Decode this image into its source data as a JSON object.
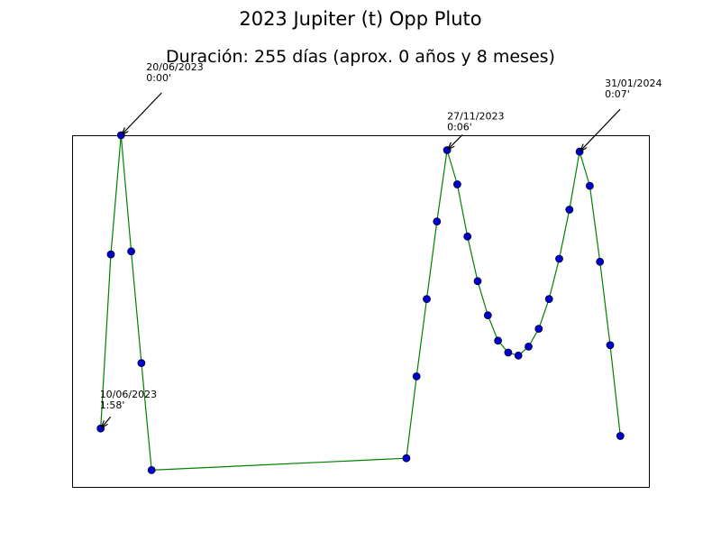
{
  "chart_data": {
    "type": "line",
    "title": "2023 Jupiter (t) Opp Pluto",
    "subtitle": "Duración: 255 días (aprox. 0 años y 8 meses)",
    "xlabel": "",
    "ylabel": "",
    "x_ticks_visible": false,
    "y_ticks_visible": false,
    "grid": false,
    "line_color": "#008000",
    "marker_color": "#0000cc",
    "marker_edge_color": "#000033",
    "series": [
      {
        "points": [
          {
            "x": "2023-06-10",
            "y": 1.97
          },
          {
            "x": "2023-06-15",
            "y": 0.8
          },
          {
            "x": "2023-06-20",
            "y": 0.0
          },
          {
            "x": "2023-06-25",
            "y": 0.78
          },
          {
            "x": "2023-06-30",
            "y": 1.53
          },
          {
            "x": "2023-07-05",
            "y": 2.25
          },
          {
            "x": "2023-11-07",
            "y": 2.17
          },
          {
            "x": "2023-11-12",
            "y": 1.62
          },
          {
            "x": "2023-11-17",
            "y": 1.1
          },
          {
            "x": "2023-11-22",
            "y": 0.58
          },
          {
            "x": "2023-11-27",
            "y": 0.1
          },
          {
            "x": "2023-12-02",
            "y": 0.33
          },
          {
            "x": "2023-12-07",
            "y": 0.68
          },
          {
            "x": "2023-12-12",
            "y": 0.98
          },
          {
            "x": "2023-12-17",
            "y": 1.21
          },
          {
            "x": "2023-12-22",
            "y": 1.38
          },
          {
            "x": "2023-12-27",
            "y": 1.46
          },
          {
            "x": "2024-01-01",
            "y": 1.48
          },
          {
            "x": "2024-01-06",
            "y": 1.42
          },
          {
            "x": "2024-01-11",
            "y": 1.3
          },
          {
            "x": "2024-01-16",
            "y": 1.1
          },
          {
            "x": "2024-01-21",
            "y": 0.83
          },
          {
            "x": "2024-01-26",
            "y": 0.5
          },
          {
            "x": "2024-01-31",
            "y": 0.11
          },
          {
            "x": "2024-02-05",
            "y": 0.34
          },
          {
            "x": "2024-02-10",
            "y": 0.85
          },
          {
            "x": "2024-02-15",
            "y": 1.41
          },
          {
            "x": "2024-02-20",
            "y": 2.02
          }
        ]
      }
    ],
    "annotations": [
      {
        "x": "2023-06-10",
        "y": 1.97,
        "text": "10/06/2023\n1:58'"
      },
      {
        "x": "2023-06-20",
        "y": 0.0,
        "text": "20/06/2023\n0:00'"
      },
      {
        "x": "2023-11-27",
        "y": 0.1,
        "text": "27/11/2023\n0:06'"
      },
      {
        "x": "2024-01-31",
        "y": 0.11,
        "text": "31/01/2024\n0:07'"
      }
    ]
  }
}
